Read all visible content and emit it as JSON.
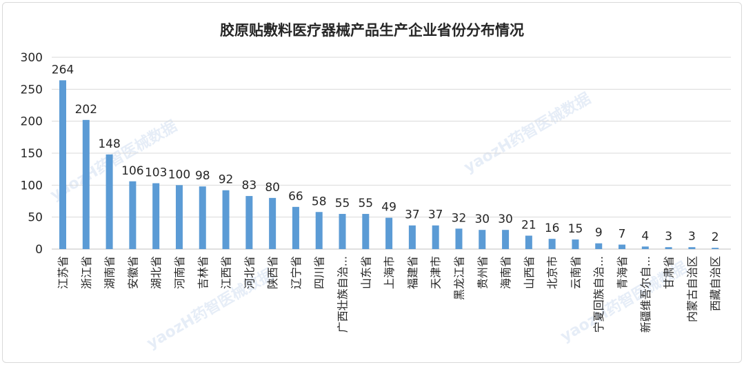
{
  "chart_data": {
    "type": "bar",
    "title": "胶原贴敷料医疗器械产品生产企业省份分布情况",
    "categories": [
      "江苏省",
      "浙江省",
      "湖南省",
      "安徽省",
      "湖北省",
      "河南省",
      "吉林省",
      "江西省",
      "河北省",
      "陕西省",
      "辽宁省",
      "四川省",
      "广西壮族自治...",
      "山东省",
      "上海市",
      "福建省",
      "天津市",
      "黑龙江省",
      "贵州省",
      "海南省",
      "山西省",
      "北京市",
      "云南省",
      "宁夏回族自治...",
      "青海省",
      "新疆维吾尔自...",
      "甘肃省",
      "内蒙古自治区",
      "西藏自治区"
    ],
    "values": [
      264,
      202,
      148,
      106,
      103,
      100,
      98,
      92,
      83,
      80,
      66,
      58,
      55,
      55,
      49,
      37,
      37,
      32,
      30,
      30,
      21,
      16,
      15,
      9,
      7,
      4,
      3,
      3,
      2
    ],
    "ylim": [
      0,
      300
    ],
    "yticks": [
      0,
      50,
      100,
      150,
      200,
      250,
      300
    ],
    "grid": true,
    "legend": "none",
    "bar_color": "#5b9bd5"
  },
  "watermark": "yaozH药智医械数据"
}
